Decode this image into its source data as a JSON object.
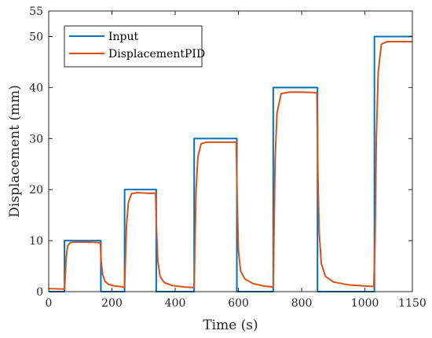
{
  "chart_data": {
    "type": "line",
    "title": "",
    "xlabel": "Time (s)",
    "ylabel": "Displacement (mm)",
    "xlim": [
      0,
      1150
    ],
    "ylim": [
      0,
      55
    ],
    "xticks": [
      0,
      200,
      400,
      600,
      800,
      1000,
      1150
    ],
    "yticks": [
      0,
      10,
      20,
      30,
      40,
      50,
      55
    ],
    "xtick_labels": [
      "0",
      "200",
      "400",
      "600",
      "800",
      "1000",
      "1150"
    ],
    "ytick_labels": [
      "0",
      "10",
      "20",
      "30",
      "40",
      "50",
      "55"
    ],
    "grid": false,
    "legend_position": "top-left",
    "series": [
      {
        "name": "Input",
        "color": "#0072BD",
        "x": [
          0,
          50,
          50,
          165,
          165,
          240,
          240,
          340,
          340,
          460,
          460,
          595,
          595,
          710,
          710,
          850,
          850,
          1030,
          1030,
          1150
        ],
        "y": [
          0,
          0,
          10,
          10,
          0,
          0,
          20,
          20,
          0,
          0,
          30,
          30,
          0,
          0,
          40,
          40,
          0,
          0,
          50,
          50
        ]
      },
      {
        "name": "DisplacementPID",
        "color": "#D95319",
        "x": [
          0,
          50,
          52,
          55,
          60,
          68,
          80,
          100,
          130,
          163,
          166,
          170,
          178,
          190,
          210,
          240,
          242,
          246,
          252,
          262,
          280,
          310,
          338,
          341,
          345,
          352,
          365,
          390,
          430,
          460,
          462,
          466,
          472,
          482,
          500,
          540,
          593,
          596,
          600,
          607,
          620,
          645,
          680,
          710,
          712,
          716,
          722,
          735,
          760,
          800,
          848,
          851,
          855,
          862,
          875,
          900,
          950,
          1028,
          1032,
          1036,
          1042,
          1052,
          1070,
          1110,
          1150
        ],
        "y": [
          0.6,
          0.5,
          2.5,
          6.5,
          9.0,
          9.6,
          9.7,
          9.7,
          9.7,
          9.6,
          6.0,
          3.5,
          2.0,
          1.4,
          1.1,
          0.9,
          5.0,
          13.0,
          17.5,
          19.2,
          19.4,
          19.3,
          19.3,
          12.0,
          6.0,
          3.0,
          1.8,
          1.2,
          0.9,
          0.8,
          8.0,
          20.0,
          26.5,
          29.0,
          29.3,
          29.3,
          29.3,
          18.0,
          8.0,
          4.0,
          2.5,
          1.6,
          1.1,
          0.9,
          10.0,
          26.0,
          35.0,
          38.8,
          39.1,
          39.1,
          39.0,
          24.0,
          12.0,
          5.5,
          3.0,
          1.9,
          1.3,
          1.0,
          10.0,
          30.0,
          43.0,
          48.5,
          49.0,
          49.0,
          49.0
        ]
      }
    ]
  }
}
